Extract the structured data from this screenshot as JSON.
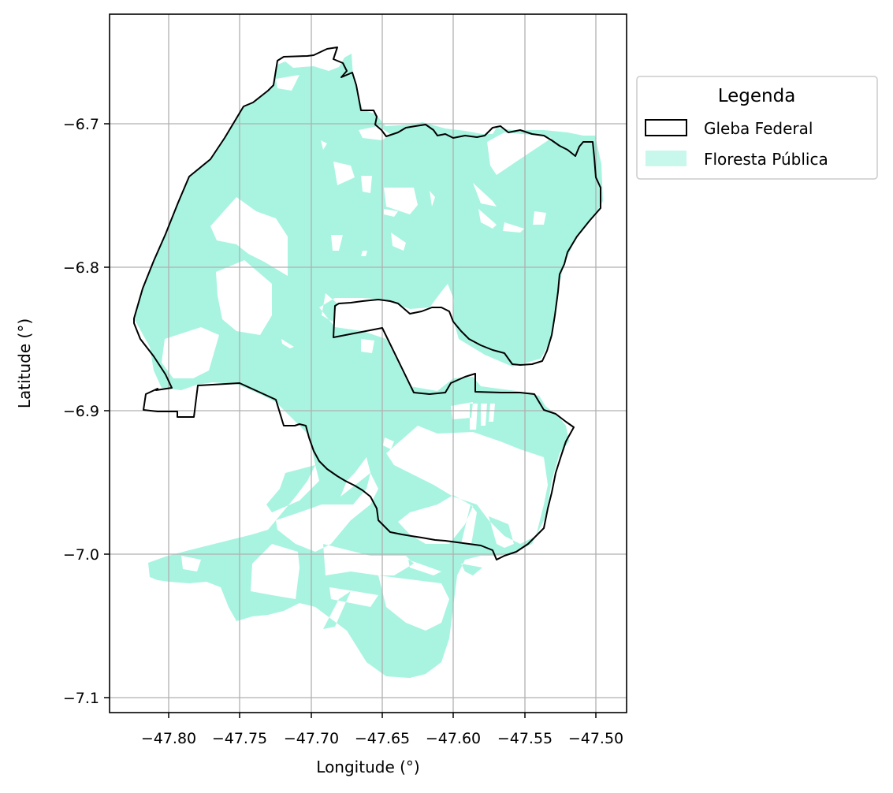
{
  "chart_data": {
    "type": "map",
    "xlabel": "Longitude (°)",
    "ylabel": "Latitude (°)",
    "xlim": [
      -47.843,
      -47.478
    ],
    "ylim": [
      -7.11,
      -6.622
    ],
    "xticks": [
      -47.8,
      -47.75,
      -47.7,
      -47.65,
      -47.6,
      -47.55,
      -47.5
    ],
    "xtick_labels": [
      "−47.80",
      "−47.75",
      "−47.70",
      "−47.65",
      "−47.60",
      "−47.55",
      "−47.50"
    ],
    "yticks": [
      -6.7,
      -6.8,
      -6.9,
      -7.0,
      -7.1
    ],
    "ytick_labels": [
      "−6.7",
      "−6.8",
      "−6.9",
      "−7.0",
      "−7.1"
    ],
    "grid": true,
    "legend": {
      "title": "Legenda",
      "placement": "outside upper right",
      "entries": [
        {
          "label": "Gleba Federal",
          "style": "outline"
        },
        {
          "label": "Floresta Pública",
          "style": "fill"
        }
      ]
    },
    "series": [
      {
        "name": "Gleba Federal",
        "geometry": "polygon",
        "edgecolor": "#000000",
        "facecolor": "none",
        "coordinates": [
          [
            -47.819,
            -6.836
          ],
          [
            -47.813,
            -6.815
          ],
          [
            -47.805,
            -6.796
          ],
          [
            -47.797,
            -6.777
          ],
          [
            -47.788,
            -6.755
          ],
          [
            -47.78,
            -6.737
          ],
          [
            -47.765,
            -6.725
          ],
          [
            -47.755,
            -6.71
          ],
          [
            -47.742,
            -6.688
          ],
          [
            -47.737,
            -6.684
          ],
          [
            -47.73,
            -6.685
          ],
          [
            -47.725,
            -6.676
          ],
          [
            -47.724,
            -6.652
          ],
          [
            -47.719,
            -6.649
          ],
          [
            -47.703,
            -6.648
          ],
          [
            -47.695,
            -6.643
          ],
          [
            -47.69,
            -6.645
          ],
          [
            -47.693,
            -6.656
          ],
          [
            -47.686,
            -6.658
          ],
          [
            -47.68,
            -6.657
          ],
          [
            -47.676,
            -6.663
          ],
          [
            -47.672,
            -6.668
          ],
          [
            -47.67,
            -6.69
          ],
          [
            -47.655,
            -6.691
          ],
          [
            -47.652,
            -6.7
          ],
          [
            -47.645,
            -6.708
          ],
          [
            -47.635,
            -6.703
          ],
          [
            -47.625,
            -6.702
          ],
          [
            -47.618,
            -6.708
          ],
          [
            -47.61,
            -6.71
          ],
          [
            -47.6,
            -6.708
          ],
          [
            -47.59,
            -6.705
          ],
          [
            -47.58,
            -6.703
          ],
          [
            -47.57,
            -6.71
          ],
          [
            -47.56,
            -6.718
          ],
          [
            -47.555,
            -6.722
          ],
          [
            -47.547,
            -6.722
          ],
          [
            -47.54,
            -6.714
          ],
          [
            -47.53,
            -6.712
          ],
          [
            -47.518,
            -6.72
          ],
          [
            -47.511,
            -6.713
          ],
          [
            -47.502,
            -6.713
          ],
          [
            -47.5,
            -6.73
          ],
          [
            -47.497,
            -6.745
          ],
          [
            -47.5,
            -6.759
          ],
          [
            -47.508,
            -6.77
          ],
          [
            -47.518,
            -6.788
          ],
          [
            -47.526,
            -6.808
          ],
          [
            -47.53,
            -6.825
          ],
          [
            -47.532,
            -6.845
          ],
          [
            -47.535,
            -6.855
          ],
          [
            -47.545,
            -6.862
          ],
          [
            -47.555,
            -6.865
          ],
          [
            -47.568,
            -6.858
          ],
          [
            -47.58,
            -6.85
          ],
          [
            -47.59,
            -6.847
          ],
          [
            -47.597,
            -6.84
          ],
          [
            -47.6,
            -6.83
          ],
          [
            -47.61,
            -6.826
          ],
          [
            -47.625,
            -6.831
          ],
          [
            -47.635,
            -6.826
          ],
          [
            -47.645,
            -6.823
          ],
          [
            -47.66,
            -6.824
          ],
          [
            -47.675,
            -6.825
          ],
          [
            -47.685,
            -6.829
          ],
          [
            -47.687,
            -6.85
          ],
          [
            -47.66,
            -6.842
          ],
          [
            -47.63,
            -6.889
          ],
          [
            -47.61,
            -6.888
          ],
          [
            -47.605,
            -6.882
          ],
          [
            -47.595,
            -6.875
          ],
          [
            -47.587,
            -6.876
          ],
          [
            -47.587,
            -6.887
          ],
          [
            -47.555,
            -6.887
          ],
          [
            -47.536,
            -6.888
          ],
          [
            -47.531,
            -6.899
          ],
          [
            -47.52,
            -6.902
          ],
          [
            -47.512,
            -6.911
          ],
          [
            -47.52,
            -6.925
          ],
          [
            -47.53,
            -6.96
          ],
          [
            -47.535,
            -6.98
          ],
          [
            -47.548,
            -6.993
          ],
          [
            -47.57,
            -7.0
          ],
          [
            -47.578,
            -6.995
          ],
          [
            -47.592,
            -6.993
          ],
          [
            -47.608,
            -6.991
          ],
          [
            -47.625,
            -6.988
          ],
          [
            -47.64,
            -6.985
          ],
          [
            -47.652,
            -6.975
          ],
          [
            -47.665,
            -6.965
          ],
          [
            -47.68,
            -6.953
          ],
          [
            -47.69,
            -6.94
          ],
          [
            -47.7,
            -6.925
          ],
          [
            -47.712,
            -6.917
          ],
          [
            -47.715,
            -6.912
          ],
          [
            -47.725,
            -6.894
          ],
          [
            -47.75,
            -6.88
          ],
          [
            -47.78,
            -6.882
          ],
          [
            -47.783,
            -6.905
          ],
          [
            -47.795,
            -6.905
          ],
          [
            -47.796,
            -6.902
          ],
          [
            -47.81,
            -6.902
          ],
          [
            -47.819,
            -6.9
          ],
          [
            -47.817,
            -6.888
          ],
          [
            -47.81,
            -6.885
          ],
          [
            -47.803,
            -6.886
          ],
          [
            -47.807,
            -6.878
          ],
          [
            -47.815,
            -6.86
          ],
          [
            -47.82,
            -6.845
          ],
          [
            -47.819,
            -6.836
          ]
        ]
      },
      {
        "name": "Floresta Pública",
        "geometry": "multipolygon",
        "facecolor": "#a8f4e0",
        "coordinates": [
          [
            [
              -47.819,
              -6.836
            ],
            [
              -47.813,
              -6.815
            ],
            [
              -47.805,
              -6.796
            ],
            [
              -47.797,
              -6.777
            ],
            [
              -47.788,
              -6.755
            ],
            [
              -47.78,
              -6.737
            ],
            [
              -47.765,
              -6.725
            ],
            [
              -47.755,
              -6.71
            ],
            [
              -47.742,
              -6.688
            ],
            [
              -47.73,
              -6.685
            ],
            [
              -47.723,
              -6.656
            ],
            [
              -47.716,
              -6.654
            ],
            [
              -47.715,
              -6.663
            ],
            [
              -47.7,
              -6.664
            ],
            [
              -47.69,
              -6.668
            ],
            [
              -47.685,
              -6.668
            ],
            [
              -47.681,
              -6.673
            ],
            [
              -47.677,
              -6.694
            ],
            [
              -47.67,
              -6.7
            ],
            [
              -47.655,
              -6.71
            ],
            [
              -47.63,
              -6.708
            ],
            [
              -47.615,
              -6.712
            ],
            [
              -47.605,
              -6.708
            ],
            [
              -47.59,
              -6.708
            ],
            [
              -47.58,
              -6.708
            ],
            [
              -47.578,
              -6.719
            ],
            [
              -47.572,
              -6.737
            ],
            [
              -47.563,
              -6.729
            ],
            [
              -47.54,
              -6.711
            ],
            [
              -47.52,
              -6.712
            ],
            [
              -47.508,
              -6.71
            ],
            [
              -47.5,
              -6.71
            ],
            [
              -47.498,
              -6.745
            ],
            [
              -47.502,
              -6.762
            ],
            [
              -47.512,
              -6.776
            ],
            [
              -47.52,
              -6.792
            ],
            [
              -47.526,
              -6.808
            ],
            [
              -47.532,
              -6.845
            ],
            [
              -47.55,
              -6.862
            ],
            [
              -47.57,
              -6.856
            ],
            [
              -47.588,
              -6.846
            ],
            [
              -47.598,
              -6.84
            ],
            [
              -47.596,
              -6.805
            ],
            [
              -47.6,
              -6.83
            ],
            [
              -47.61,
              -6.826
            ],
            [
              -47.64,
              -6.823
            ],
            [
              -47.67,
              -6.823
            ],
            [
              -47.687,
              -6.829
            ],
            [
              -47.687,
              -6.85
            ],
            [
              -47.66,
              -6.842
            ],
            [
              -47.63,
              -6.889
            ],
            [
              -47.61,
              -6.888
            ],
            [
              -47.592,
              -6.878
            ],
            [
              -47.587,
              -6.887
            ],
            [
              -47.536,
              -6.888
            ],
            [
              -47.52,
              -6.902
            ],
            [
              -47.513,
              -6.912
            ],
            [
              -47.519,
              -6.924
            ],
            [
              -47.528,
              -6.958
            ],
            [
              -47.535,
              -6.98
            ],
            [
              -47.548,
              -6.993
            ],
            [
              -47.57,
              -7.0
            ],
            [
              -47.58,
              -7.005
            ],
            [
              -47.592,
              -7.013
            ],
            [
              -47.597,
              -7.03
            ],
            [
              -47.608,
              -7.048
            ],
            [
              -47.615,
              -7.065
            ],
            [
              -47.625,
              -7.085
            ],
            [
              -47.64,
              -7.088
            ],
            [
              -47.66,
              -7.08
            ],
            [
              -47.68,
              -7.06
            ],
            [
              -47.69,
              -7.04
            ],
            [
              -47.7,
              -7.035
            ],
            [
              -47.73,
              -7.032
            ],
            [
              -47.75,
              -7.045
            ],
            [
              -47.765,
              -7.03
            ],
            [
              -47.785,
              -7.022
            ],
            [
              -47.8,
              -7.017
            ],
            [
              -47.81,
              -7.01
            ],
            [
              -47.8,
              -7.005
            ],
            [
              -47.76,
              -6.99
            ],
            [
              -47.73,
              -6.98
            ],
            [
              -47.71,
              -6.96
            ],
            [
              -47.7,
              -6.94
            ],
            [
              -47.712,
              -6.917
            ],
            [
              -47.725,
              -6.894
            ],
            [
              -47.75,
              -6.88
            ],
            [
              -47.78,
              -6.882
            ],
            [
              -47.8,
              -6.88
            ],
            [
              -47.81,
              -6.86
            ],
            [
              -47.819,
              -6.836
            ]
          ]
        ]
      }
    ]
  }
}
